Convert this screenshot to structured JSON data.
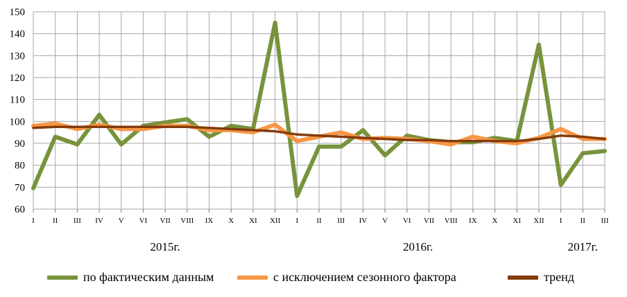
{
  "chart_data": {
    "type": "line",
    "ylim": [
      60,
      150
    ],
    "yticks": [
      60,
      70,
      80,
      90,
      100,
      110,
      120,
      130,
      140,
      150
    ],
    "categories": [
      "I",
      "II",
      "III",
      "IV",
      "V",
      "VI",
      "VII",
      "VIII",
      "IX",
      "X",
      "XI",
      "XII",
      "I",
      "II",
      "III",
      "IV",
      "V",
      "VI",
      "VII",
      "VIII",
      "IX",
      "X",
      "XI",
      "XII",
      "I",
      "II",
      "III"
    ],
    "year_labels": [
      {
        "label": "2015г.",
        "at_index": 6
      },
      {
        "label": "2016г.",
        "at_index": 17.5
      },
      {
        "label": "2017г.",
        "at_index": 25
      }
    ],
    "grid": true,
    "legend_position": "bottom",
    "series": [
      {
        "name": "по фактическим  данным",
        "color": "#77933C",
        "values": [
          69.5,
          93,
          89.5,
          103,
          89.5,
          98,
          99.5,
          101,
          93,
          98,
          96.5,
          145,
          66,
          88.5,
          88.5,
          96,
          84.5,
          93.5,
          91.5,
          90.5,
          90.5,
          92.5,
          91,
          135,
          71,
          85.5,
          86.5
        ]
      },
      {
        "name": "с исключением  сезонного фактора",
        "color": "#F79646",
        "values": [
          98,
          99,
          96.5,
          98.5,
          96.5,
          96.5,
          98,
          98,
          96,
          96,
          95,
          98.5,
          91,
          93,
          95,
          92,
          92.5,
          92,
          91,
          89.5,
          93,
          91,
          90,
          92.5,
          96.5,
          92,
          92
        ]
      },
      {
        "name": "тренд",
        "color": "#843C0C",
        "values": [
          97,
          97.5,
          97.5,
          97.5,
          97.5,
          97.5,
          97.5,
          97.5,
          97,
          96.5,
          96,
          95.5,
          94,
          93.5,
          93,
          92.5,
          92,
          91.5,
          91.5,
          91,
          91,
          91,
          91,
          92,
          93.5,
          93,
          92
        ]
      }
    ]
  }
}
